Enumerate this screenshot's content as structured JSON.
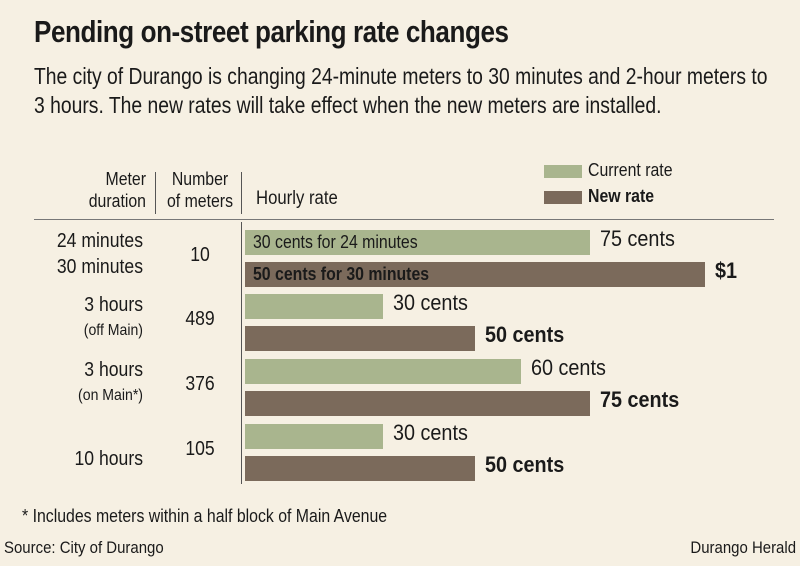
{
  "title": "Pending on-street parking rate changes",
  "subtitle": "The city of Durango is changing 24-minute meters to 30 minutes and 2-hour meters to 3 hours. The new rates will take effect when the new meters are installed.",
  "headers": {
    "meter_line1": "Meter",
    "meter_line2": "duration",
    "number_line1": "Number",
    "number_line2": "of meters",
    "rate": "Hourly rate"
  },
  "colors": {
    "current": "#a9b58e",
    "new": "#7b6a5b",
    "background": "#f6f0e3"
  },
  "footnote": "* Includes meters within a half block of Main Avenue",
  "source": "Source: City of Durango",
  "credit": "Durango Herald",
  "rows": [
    {
      "label_line1": "24 minutes",
      "label_line2": "30 minutes",
      "count": "10",
      "current_inner": "30 cents for 24 minutes",
      "current_label": "75 cents",
      "new_inner": "50 cents for 30 minutes",
      "new_label": "$1"
    },
    {
      "label_line1": "3 hours",
      "label_line2": "(off Main)",
      "count": "489",
      "current_label": "30 cents",
      "new_label": "50 cents"
    },
    {
      "label_line1": "3 hours",
      "label_line2": "(on Main*)",
      "count": "376",
      "current_label": "60 cents",
      "new_label": "75 cents"
    },
    {
      "label_line1": "10 hours",
      "count": "105",
      "current_label": "30 cents",
      "new_label": "50 cents"
    }
  ],
  "chart_data": {
    "type": "bar",
    "orientation": "horizontal",
    "title": "Pending on-street parking rate changes",
    "xlabel": "Hourly rate",
    "units": "cents per hour",
    "categories": [
      "24 minutes / 30 minutes",
      "3 hours (off Main)",
      "3 hours (on Main*)",
      "10 hours"
    ],
    "meter_counts": [
      10,
      489,
      376,
      105
    ],
    "series": [
      {
        "name": "Current rate",
        "values": [
          75,
          30,
          60,
          30
        ]
      },
      {
        "name": "New rate",
        "values": [
          100,
          50,
          75,
          50
        ]
      }
    ],
    "xlim": [
      0,
      100
    ],
    "legend": "top-right",
    "grid": false
  }
}
